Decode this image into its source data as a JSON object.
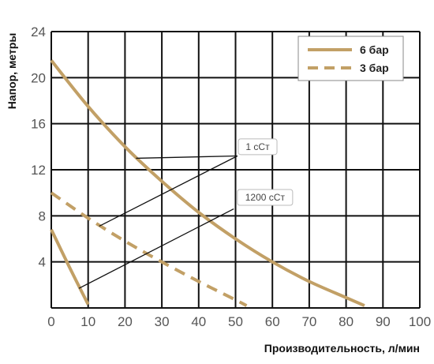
{
  "chart_data": {
    "type": "line",
    "title": "",
    "xlabel": "Производительность, л/мин",
    "ylabel": "Напор, метры",
    "xlim": [
      0,
      100
    ],
    "ylim": [
      0,
      24
    ],
    "x_ticks": [
      0,
      10,
      20,
      30,
      40,
      50,
      60,
      70,
      80,
      90,
      100
    ],
    "y_ticks": [
      4,
      8,
      12,
      16,
      20,
      24
    ],
    "grid": true,
    "legend_position": "top-right",
    "colors": {
      "curve": "#C2A066",
      "grid": "#111111",
      "annotation_line": "#111111"
    },
    "series": [
      {
        "name": "6 бар",
        "style": "solid",
        "x": [
          0,
          10,
          20,
          30,
          40,
          50,
          60,
          70,
          80,
          85
        ],
        "y": [
          21.5,
          17.5,
          14,
          11,
          8.3,
          6,
          4,
          2.3,
          0.9,
          0.2
        ]
      },
      {
        "name": "3 бар",
        "style": "dashed",
        "x": [
          0,
          10,
          20,
          30,
          40,
          50,
          53
        ],
        "y": [
          10,
          7.8,
          5.8,
          4,
          2.3,
          0.7,
          0.2
        ]
      },
      {
        "name": "",
        "style": "solid",
        "x": [
          0,
          5,
          10
        ],
        "y": [
          6.8,
          3.5,
          0.3
        ]
      }
    ],
    "annotations": [
      {
        "label": "1 сСт",
        "box_at": [
          56,
          14
        ],
        "lines": [
          {
            "from": [
              23,
              13
            ],
            "to": [
              50.5,
              13.2
            ]
          },
          {
            "from": [
              13,
              7.1
            ],
            "to": [
              50.5,
              13.2
            ]
          }
        ]
      },
      {
        "label": "1200 сСт",
        "box_at": [
          58,
          9.6
        ],
        "lines": [
          {
            "from": [
              7.5,
              1.7
            ],
            "to": [
              49.5,
              8.6
            ]
          }
        ]
      }
    ]
  }
}
